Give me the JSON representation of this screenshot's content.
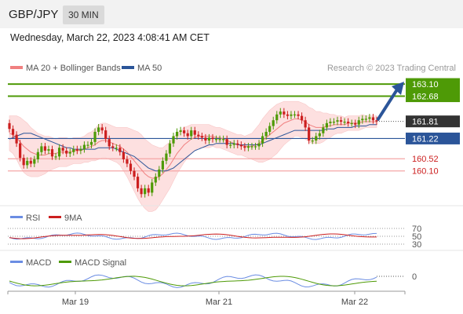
{
  "header": {
    "symbol": "GBP/JPY",
    "timeframe": "30 MIN"
  },
  "datetime": "Wednesday, March 22, 2023 4:08:41 AM CET",
  "legend": {
    "ma_bb": {
      "label": "MA 20 + Bollinger Bands",
      "color": "#f08080"
    },
    "ma50": {
      "label": "MA 50",
      "color": "#2b5599"
    },
    "copyright": "Research © 2023 Trading Central"
  },
  "colors": {
    "resistance": "#4e9a06",
    "support": "#2b5599",
    "pivot": "#f4a6a6",
    "pivot_text": "#cc1f1f",
    "bull": "#4e9a06",
    "bear": "#cc1f1f",
    "band": "#fde0e0",
    "arrow": "#2b5599",
    "last_price_bg": "#333333"
  },
  "chart_data": [
    {
      "type": "candlestick",
      "title": "GBP/JPY",
      "ylim": [
        158.9,
        163.4
      ],
      "x_ticks": [
        "Mar 19",
        "Mar 21",
        "Mar 22"
      ],
      "last_price": 161.81,
      "levels": [
        {
          "value": 163.1,
          "label": "163.10",
          "kind": "resistance"
        },
        {
          "value": 162.68,
          "label": "162.68",
          "kind": "resistance"
        },
        {
          "value": 161.22,
          "label": "161.22",
          "kind": "support"
        },
        {
          "value": 160.52,
          "label": "160.52",
          "kind": "pivot"
        },
        {
          "value": 160.1,
          "label": "160.10",
          "kind": "pivot"
        }
      ],
      "closes": [
        161.55,
        161.35,
        161.05,
        160.55,
        160.3,
        160.45,
        160.35,
        160.5,
        160.75,
        160.95,
        160.8,
        160.85,
        160.6,
        160.6,
        160.9,
        160.8,
        160.7,
        160.75,
        160.85,
        160.8,
        160.85,
        161.0,
        161.0,
        161.1,
        161.45,
        161.6,
        161.5,
        161.2,
        160.95,
        160.9,
        160.9,
        160.75,
        160.5,
        160.35,
        160.1,
        159.9,
        159.5,
        159.3,
        159.5,
        159.35,
        159.7,
        159.9,
        160.15,
        160.45,
        160.7,
        161.05,
        161.3,
        161.45,
        161.5,
        161.4,
        161.3,
        161.5,
        161.35,
        161.3,
        161.25,
        161.15,
        161.25,
        161.2,
        161.2,
        161.2,
        161.2,
        161.0,
        161.0,
        161.05,
        161.0,
        160.95,
        160.9,
        160.95,
        160.95,
        160.95,
        161.05,
        161.3,
        161.45,
        161.65,
        161.85,
        162.05,
        162.15,
        162.05,
        162.0,
        162.05,
        162.05,
        162.0,
        161.85,
        161.6,
        161.15,
        161.15,
        161.3,
        161.4,
        161.6,
        161.75,
        161.8,
        161.8,
        161.85,
        161.8,
        161.8,
        161.75,
        161.75,
        161.7,
        161.85,
        161.9,
        161.9,
        161.95,
        161.85,
        161.81
      ],
      "opens": [
        161.75,
        161.55,
        161.35,
        161.05,
        160.55,
        160.3,
        160.45,
        160.35,
        160.5,
        160.75,
        160.95,
        160.8,
        160.85,
        160.6,
        160.6,
        160.9,
        160.8,
        160.7,
        160.75,
        160.85,
        160.8,
        160.85,
        161.0,
        161.0,
        161.1,
        161.45,
        161.6,
        161.5,
        161.2,
        160.95,
        160.9,
        160.9,
        160.75,
        160.5,
        160.35,
        160.1,
        159.9,
        159.5,
        159.3,
        159.5,
        159.35,
        159.7,
        159.9,
        160.15,
        160.45,
        160.7,
        161.05,
        161.3,
        161.45,
        161.5,
        161.4,
        161.3,
        161.5,
        161.35,
        161.3,
        161.25,
        161.15,
        161.25,
        161.2,
        161.2,
        161.2,
        161.2,
        161.0,
        161.0,
        161.05,
        161.0,
        160.95,
        160.9,
        160.95,
        160.95,
        160.95,
        161.05,
        161.3,
        161.45,
        161.65,
        161.85,
        162.05,
        162.15,
        162.05,
        162.0,
        162.05,
        162.05,
        162.0,
        161.85,
        161.6,
        161.15,
        161.15,
        161.3,
        161.4,
        161.6,
        161.75,
        161.8,
        161.8,
        161.85,
        161.8,
        161.8,
        161.75,
        161.75,
        161.7,
        161.85,
        161.9,
        161.9,
        161.95,
        161.85
      ],
      "ma20": [
        161.4,
        161.35,
        161.25,
        161.1,
        160.95,
        160.85,
        160.75,
        160.7,
        160.65,
        160.65,
        160.65,
        160.7,
        160.7,
        160.7,
        160.75,
        160.75,
        160.75,
        160.75,
        160.8,
        160.8,
        160.8,
        160.85,
        160.9,
        160.95,
        161.0,
        161.1,
        161.15,
        161.15,
        161.1,
        161.05,
        161.0,
        160.95,
        160.85,
        160.75,
        160.6,
        160.45,
        160.3,
        160.15,
        160.0,
        159.9,
        159.85,
        159.85,
        159.9,
        160.0,
        160.15,
        160.3,
        160.5,
        160.7,
        160.85,
        161.0,
        161.1,
        161.2,
        161.25,
        161.3,
        161.3,
        161.3,
        161.3,
        161.3,
        161.25,
        161.25,
        161.2,
        161.15,
        161.1,
        161.05,
        161.0,
        161.0,
        160.95,
        160.95,
        160.95,
        161.0,
        161.05,
        161.15,
        161.25,
        161.35,
        161.45,
        161.55,
        161.65,
        161.75,
        161.8,
        161.85,
        161.9,
        161.9,
        161.85,
        161.8,
        161.7,
        161.65,
        161.6,
        161.6,
        161.6,
        161.65,
        161.65,
        161.7,
        161.7,
        161.7,
        161.7,
        161.75,
        161.75,
        161.75,
        161.75,
        161.8,
        161.8,
        161.8,
        161.8,
        161.8
      ],
      "ma50": [
        161.2,
        161.25,
        161.3,
        161.35,
        161.4,
        161.4,
        161.4,
        161.35,
        161.3,
        161.25,
        161.2,
        161.15,
        161.1,
        161.05,
        161.0,
        160.95,
        160.9,
        160.9,
        160.85,
        160.85,
        160.85,
        160.85,
        160.85,
        160.85,
        160.85,
        160.9,
        160.9,
        160.9,
        160.9,
        160.9,
        160.85,
        160.8,
        160.75,
        160.7,
        160.65,
        160.6,
        160.5,
        160.4,
        160.3,
        160.2,
        160.15,
        160.1,
        160.1,
        160.1,
        160.1,
        160.15,
        160.2,
        160.3,
        160.4,
        160.5,
        160.6,
        160.7,
        160.8,
        160.85,
        160.9,
        160.95,
        161.0,
        161.0,
        161.05,
        161.05,
        161.05,
        161.05,
        161.05,
        161.05,
        161.0,
        161.0,
        161.0,
        161.0,
        161.0,
        161.0,
        161.0,
        161.05,
        161.1,
        161.15,
        161.2,
        161.25,
        161.3,
        161.35,
        161.4,
        161.45,
        161.5,
        161.5,
        161.5,
        161.5,
        161.5,
        161.5,
        161.5,
        161.5,
        161.5,
        161.55,
        161.55,
        161.55,
        161.6,
        161.6,
        161.6,
        161.6,
        161.6,
        161.65,
        161.65,
        161.65,
        161.65,
        161.7,
        161.7,
        161.7
      ],
      "bb_width": [
        0.6,
        0.65,
        0.75,
        0.85,
        0.9,
        0.9,
        0.85,
        0.8,
        0.75,
        0.7,
        0.65,
        0.6,
        0.55,
        0.5,
        0.5,
        0.5,
        0.5,
        0.45,
        0.45,
        0.45,
        0.45,
        0.45,
        0.5,
        0.5,
        0.55,
        0.6,
        0.6,
        0.6,
        0.6,
        0.6,
        0.6,
        0.65,
        0.75,
        0.85,
        0.95,
        1.05,
        1.15,
        1.2,
        1.2,
        1.2,
        1.15,
        1.1,
        1.0,
        0.9,
        0.85,
        0.8,
        0.75,
        0.7,
        0.65,
        0.6,
        0.55,
        0.5,
        0.45,
        0.4,
        0.4,
        0.4,
        0.4,
        0.35,
        0.35,
        0.35,
        0.35,
        0.35,
        0.35,
        0.35,
        0.35,
        0.35,
        0.35,
        0.4,
        0.45,
        0.55,
        0.65,
        0.75,
        0.8,
        0.85,
        0.85,
        0.85,
        0.8,
        0.75,
        0.7,
        0.65,
        0.6,
        0.6,
        0.6,
        0.6,
        0.6,
        0.6,
        0.55,
        0.55,
        0.5,
        0.45,
        0.4,
        0.35,
        0.3,
        0.3,
        0.25,
        0.25,
        0.25,
        0.25,
        0.25,
        0.25,
        0.2,
        0.2,
        0.2,
        0.2
      ]
    },
    {
      "type": "line",
      "title": "RSI",
      "ylim": [
        20,
        80
      ],
      "levels": [
        {
          "value": 70,
          "label": "70"
        },
        {
          "value": 50,
          "label": "50"
        },
        {
          "value": 30,
          "label": "30"
        }
      ],
      "series": [
        {
          "name": "RSI",
          "color": "#6b8de3"
        },
        {
          "name": "9MA",
          "color": "#cc1f1f"
        }
      ]
    },
    {
      "type": "line",
      "title": "MACD",
      "levels": [
        {
          "value": 0,
          "label": "0"
        }
      ],
      "series": [
        {
          "name": "MACD",
          "color": "#6b8de3"
        },
        {
          "name": "MACD Signal",
          "color": "#4e9a06"
        }
      ]
    }
  ]
}
